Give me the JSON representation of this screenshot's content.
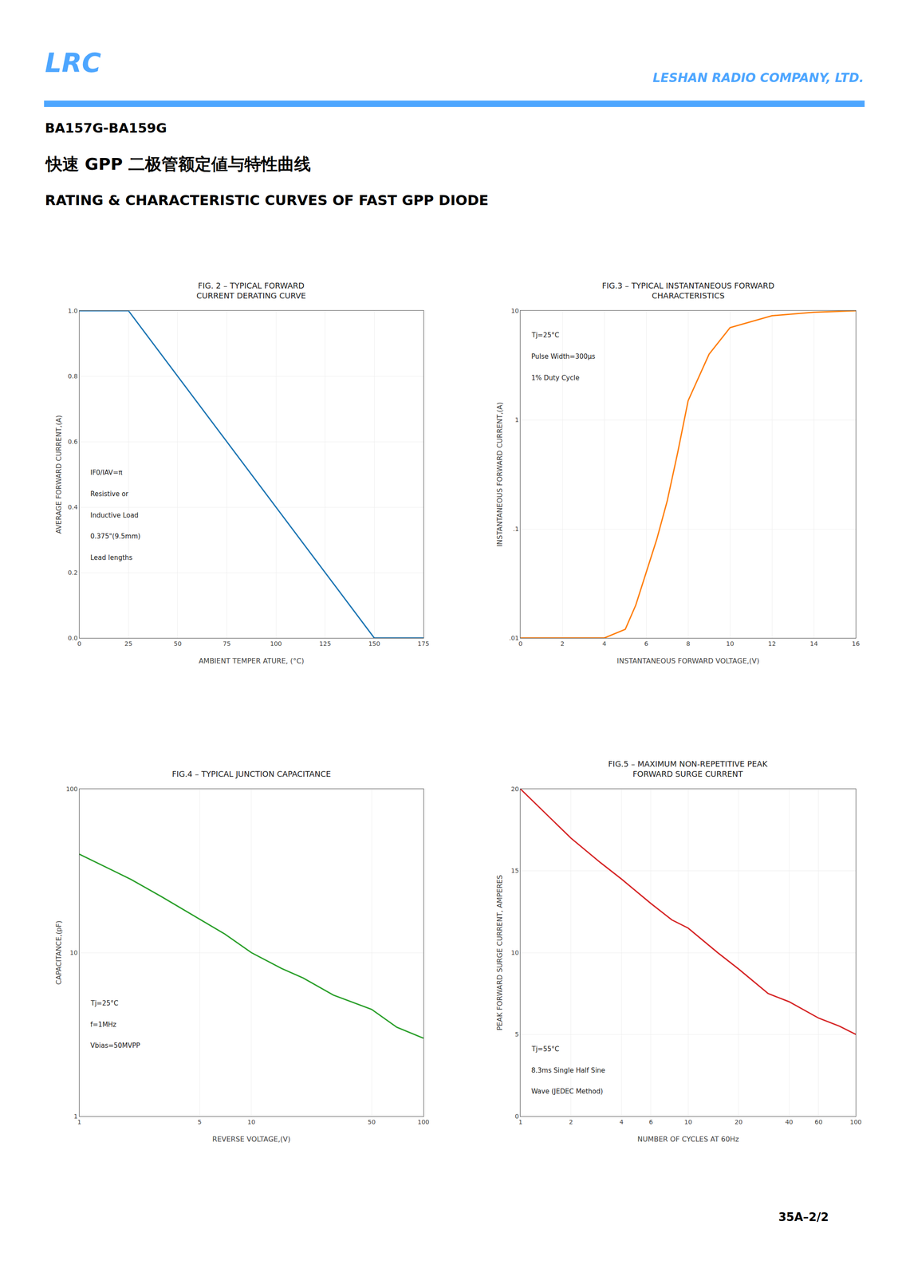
{
  "title": [
    "BA157G-BA159G",
    "快速 GPP 二极管额定値与特性曲线",
    "RATING & CHARACTERISTIC CURVES OF FAST GPP DIODE"
  ],
  "annotations": [
    "LRC",
    "LESHAN RADIO COMPANY, LTD.",
    "35A–2/2"
  ],
  "color": "#4da6ff",
  "chart_data": [
    {
      "type": "line",
      "title": [
        "FIG. 2 – TYPICAL FORWARD",
        "CURRENT DERATING CURVE"
      ],
      "xlabel": "AMBIENT TEMPER ATURE, (°C)",
      "ylabel": "AVERAGE FORWARD CURRENT,(A)",
      "x": [
        0,
        25,
        150,
        175
      ],
      "values": [
        1.0,
        1.0,
        0.0,
        0.0
      ],
      "xlim": [
        0,
        175
      ],
      "xticks": [
        0,
        25,
        50,
        75,
        100,
        125,
        150,
        175
      ],
      "ylim": [
        0,
        1.0
      ],
      "yticks": [
        {
          "value": 0,
          "label": "0.0"
        },
        0.2,
        0.4,
        0.6,
        0.8,
        {
          "value": 1.0,
          "label": "1.0"
        }
      ],
      "grid": true,
      "annotations": [
        "IF0/IAV=π",
        "Resistive or",
        "Inductive Load",
        "0.375\"(9.5mm)",
        "Lead lengths"
      ]
    },
    {
      "type": "line",
      "title": [
        "FIG.3 – TYPICAL INSTANTANEOUS FORWARD",
        "CHARACTERISTICS"
      ],
      "xlabel": "INSTANTANEOUS FORWARD VOLTAGE,(V)",
      "ylabel": "INSTANTANEOUS FORWARD CURRENT,(A)",
      "x": [
        0,
        2,
        4,
        5,
        5.5,
        6,
        6.5,
        7,
        7.5,
        8,
        9,
        10,
        12,
        14,
        16
      ],
      "values": [
        0.01,
        0.01,
        0.01,
        0.012,
        0.02,
        0.04,
        0.08,
        0.18,
        0.5,
        1.5,
        4.0,
        7.0,
        9.0,
        9.7,
        10.0
      ],
      "xlim": [
        0,
        16
      ],
      "xticks": [
        0,
        2,
        4,
        6,
        8,
        10,
        12,
        14,
        16
      ],
      "ylim": [
        0.01,
        10
      ],
      "yticks": [
        {
          "value": 0.01,
          "label": ".01"
        },
        {
          "value": 0.1,
          "label": ".1"
        },
        1,
        10
      ],
      "log": "y",
      "grid": true,
      "annotations": [
        "Tj=25°C",
        "Pulse Width=300μs",
        "1% Duty Cycle"
      ]
    },
    {
      "type": "line",
      "title": [
        "FIG.4 – TYPICAL JUNCTION CAPACITANCE"
      ],
      "xlabel": "REVERSE VOLTAGE,(V)",
      "ylabel": "CAPACITANCE,(pF)",
      "x": [
        1,
        2,
        3,
        5,
        7,
        10,
        15,
        20,
        30,
        50,
        70,
        100
      ],
      "values": [
        40,
        28,
        22,
        16,
        13,
        10,
        8,
        7,
        5.5,
        4.5,
        3.5,
        3.0
      ],
      "xlim": [
        1,
        100
      ],
      "xticks": [
        1,
        5,
        10,
        50,
        100
      ],
      "ylim": [
        1,
        100
      ],
      "yticks": [
        1,
        10,
        100
      ],
      "log": true,
      "grid": true,
      "annotations": [
        "Tj=25°C",
        "f=1MHz",
        "Vbias=50MVPP"
      ]
    },
    {
      "type": "line",
      "title": [
        "FIG.5 – MAXIMUM NON-REPETITIVE PEAK",
        "FORWARD SURGE CURRENT"
      ],
      "xlabel": "NUMBER OF CYCLES AT 60Hz",
      "ylabel": "PEAK FORWARD SURGE CURRENT, AMPERES",
      "x": [
        1,
        2,
        3,
        4,
        6,
        8,
        10,
        15,
        20,
        30,
        40,
        60,
        80,
        100
      ],
      "values": [
        20,
        17,
        15.5,
        14.5,
        13,
        12,
        11.5,
        10,
        9,
        7.5,
        7.0,
        6.0,
        5.5,
        5.0
      ],
      "xlim": [
        1,
        100
      ],
      "xticks": [
        1,
        2,
        4,
        6,
        10,
        20,
        40,
        60,
        100
      ],
      "ylim": [
        0,
        20
      ],
      "yticks": [
        0,
        5,
        10,
        15,
        20
      ],
      "log": "x",
      "grid": true,
      "annotations": [
        "Tj=55°C",
        "8.3ms Single Half Sine",
        "Wave (JEDEC Method)"
      ]
    }
  ]
}
